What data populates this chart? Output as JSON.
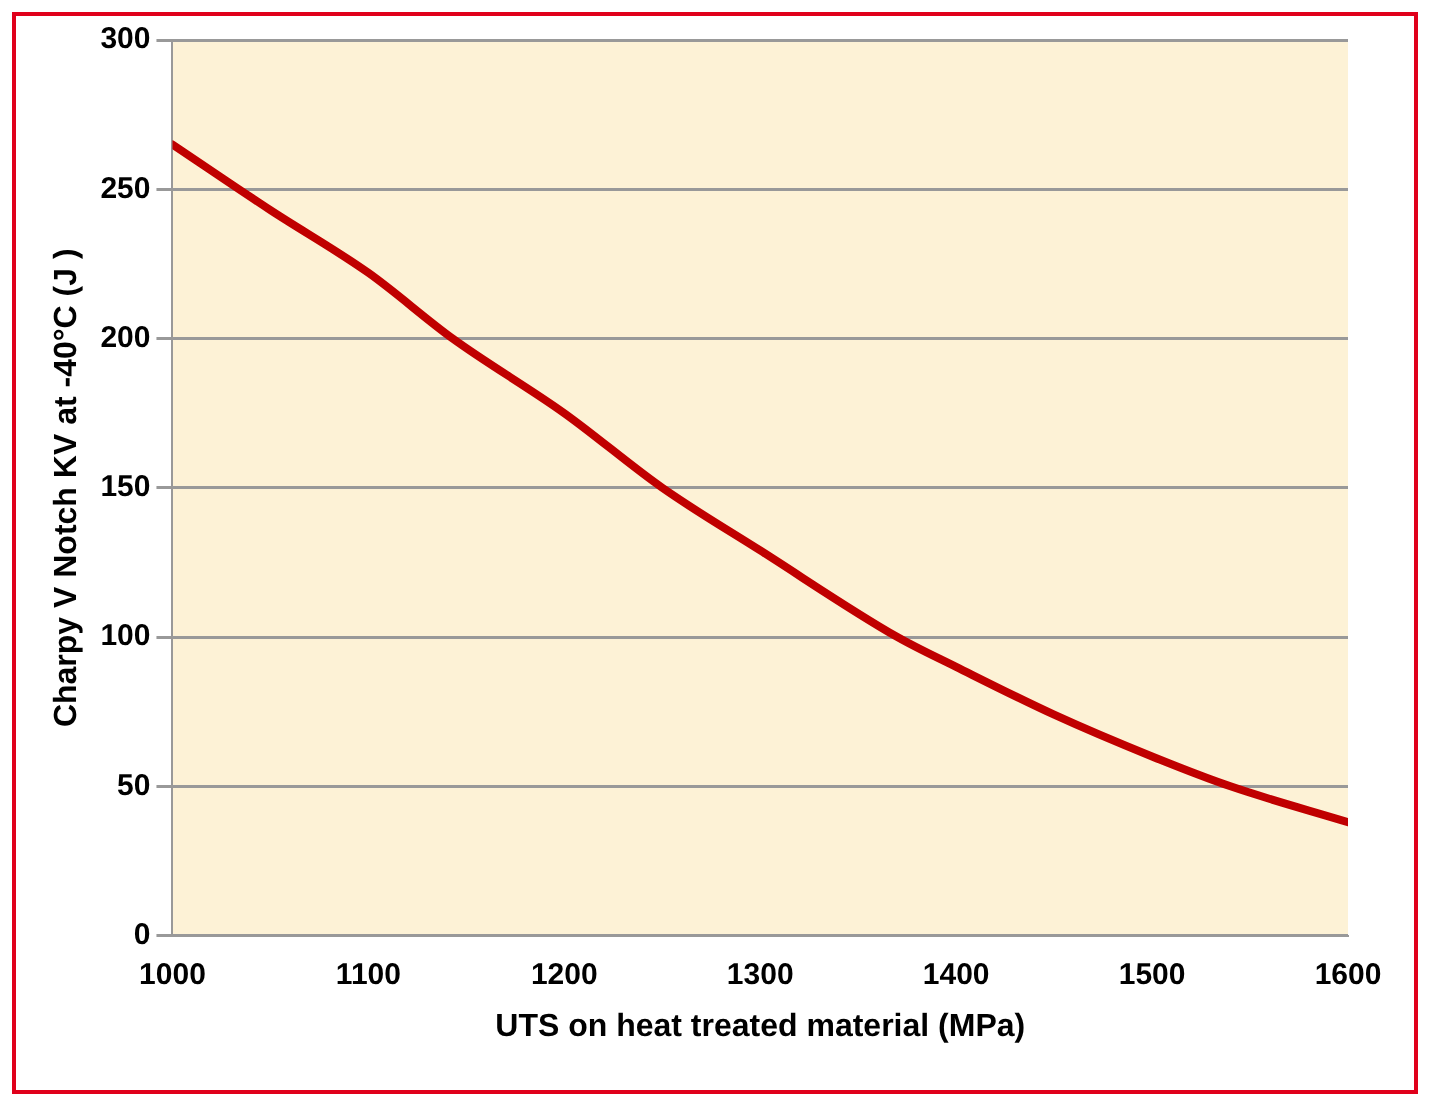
{
  "chart_data": {
    "type": "line",
    "xlabel": "UTS on heat treated material (MPa)",
    "ylabel": "Charpy V Notch KV at -40°C (J )",
    "x": [
      1000,
      1050,
      1100,
      1143,
      1200,
      1250,
      1300,
      1370,
      1400,
      1450,
      1500,
      1540,
      1600
    ],
    "series": [
      {
        "color": "#c00000",
        "values": [
          265,
          243,
          222,
          200,
          175,
          150,
          129,
          100,
          90,
          74,
          60,
          50,
          38
        ]
      }
    ],
    "xlim": [
      1000,
      1600
    ],
    "xticks": [
      1000,
      1100,
      1200,
      1300,
      1400,
      1500,
      1600
    ],
    "ylim": [
      0,
      300
    ],
    "yticks": [
      0,
      50,
      100,
      150,
      200,
      250,
      300
    ],
    "grid": "y",
    "legend": false,
    "marker": "none",
    "line_style": "solid"
  }
}
